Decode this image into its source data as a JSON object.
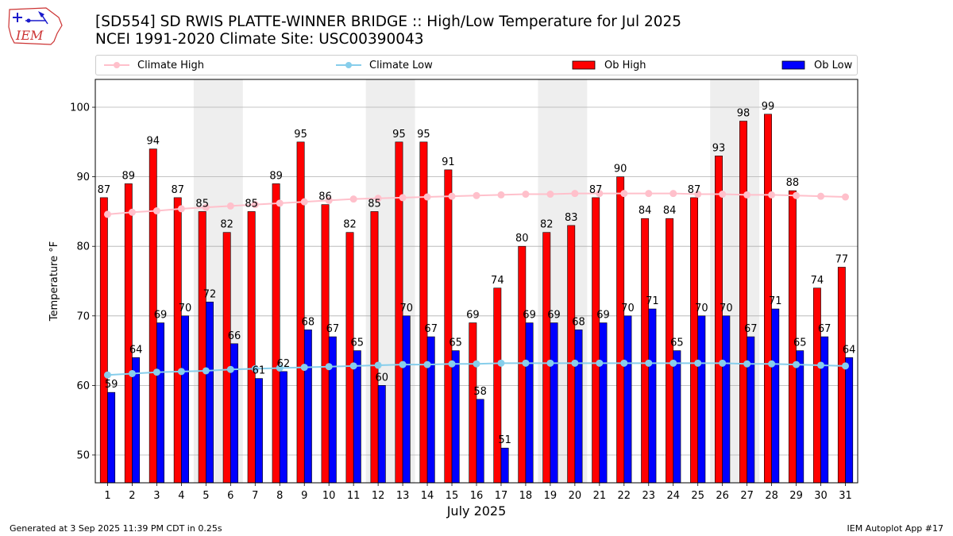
{
  "logo_text": "IEM",
  "title_line1": "[SD554] SD RWIS PLATTE-WINNER BRIDGE :: High/Low Temperature for Jul 2025",
  "title_line2": "NCEI 1991-2020 Climate Site: USC00390043",
  "footer_left": "Generated at 3 Sep 2025 11:39 PM CDT in 0.25s",
  "footer_right": "IEM Autoplot App #17",
  "chart_data": {
    "type": "bar",
    "xlabel": "July 2025",
    "ylabel": "Temperature °F",
    "ylim": [
      46,
      104
    ],
    "yticks": [
      50,
      60,
      70,
      80,
      90,
      100
    ],
    "grid": true,
    "legend_position": "top",
    "colors": {
      "ob_high": "#ff0000",
      "ob_low": "#0000ff",
      "climate_high": "#ffc0cb",
      "climate_low": "#87ceeb",
      "weekend_shade": "#eeeeee"
    },
    "categories": [
      "1",
      "2",
      "3",
      "4",
      "5",
      "6",
      "7",
      "8",
      "9",
      "10",
      "11",
      "12",
      "13",
      "14",
      "15",
      "16",
      "17",
      "18",
      "19",
      "20",
      "21",
      "22",
      "23",
      "24",
      "25",
      "26",
      "27",
      "28",
      "29",
      "30",
      "31"
    ],
    "shaded_weekends": [
      [
        5,
        6
      ],
      [
        12,
        13
      ],
      [
        19,
        20
      ],
      [
        26,
        27
      ]
    ],
    "series": [
      {
        "name": "Ob High",
        "kind": "bar",
        "values": [
          87,
          89,
          94,
          87,
          85,
          82,
          85,
          89,
          95,
          86,
          82,
          85,
          95,
          95,
          91,
          69,
          74,
          80,
          82,
          83,
          87,
          90,
          84,
          84,
          87,
          93,
          98,
          99,
          88,
          74,
          77
        ]
      },
      {
        "name": "Ob Low",
        "kind": "bar",
        "values": [
          59,
          64,
          69,
          70,
          72,
          66,
          61,
          62,
          68,
          67,
          65,
          60,
          70,
          67,
          65,
          58,
          51,
          69,
          69,
          68,
          69,
          70,
          71,
          65,
          70,
          70,
          67,
          71,
          65,
          67,
          64
        ]
      },
      {
        "name": "Climate High",
        "kind": "line",
        "values": [
          84.6,
          84.9,
          85.1,
          85.4,
          85.6,
          85.8,
          86.0,
          86.2,
          86.4,
          86.6,
          86.8,
          86.9,
          87.0,
          87.1,
          87.2,
          87.3,
          87.4,
          87.5,
          87.5,
          87.6,
          87.6,
          87.6,
          87.6,
          87.6,
          87.5,
          87.5,
          87.4,
          87.4,
          87.3,
          87.2,
          87.1
        ]
      },
      {
        "name": "Climate Low",
        "kind": "line",
        "values": [
          61.5,
          61.7,
          61.9,
          62.0,
          62.1,
          62.3,
          62.4,
          62.5,
          62.6,
          62.7,
          62.8,
          62.9,
          63.0,
          63.0,
          63.1,
          63.1,
          63.2,
          63.2,
          63.2,
          63.2,
          63.2,
          63.2,
          63.2,
          63.2,
          63.2,
          63.2,
          63.1,
          63.1,
          63.0,
          62.9,
          62.8
        ]
      }
    ]
  }
}
